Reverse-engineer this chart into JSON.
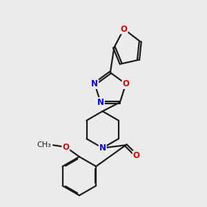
{
  "background_color": "#ebebeb",
  "bond_color": "#1a1a1a",
  "bond_width": 1.6,
  "dbo": 0.055,
  "atom_colors": {
    "N": "#0000EE",
    "O": "#DD0000",
    "C": "#1a1a1a"
  },
  "font_size_atom": 8.5,
  "fig_width": 3.0,
  "fig_height": 3.0,
  "dpi": 100
}
